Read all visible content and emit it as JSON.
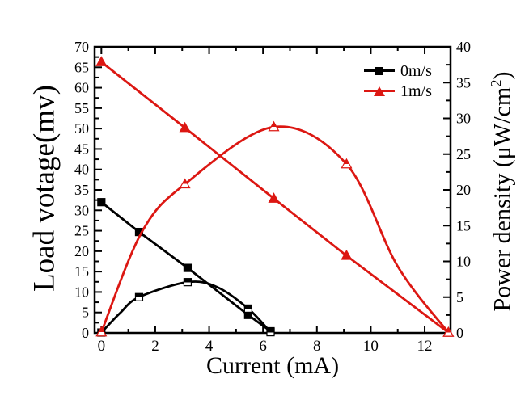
{
  "figure": {
    "background": "#ffffff",
    "text_color": "#000000"
  },
  "chart_data": {
    "type": "line",
    "title": "",
    "xlabel": "Current (mA)",
    "ylabel_left": "Load votage(mv)",
    "ylabel_right": "Power density (μW/cm²)",
    "ylabel_right_parts": {
      "pre": "Power density (μW/cm",
      "sup": "2",
      "post": ")"
    },
    "grid": false,
    "legend_position": "top-right-inside",
    "axes": {
      "x": {
        "min": -0.25,
        "max": 12.96,
        "major_ticks": [
          0,
          2,
          4,
          6,
          8,
          10,
          12
        ],
        "minor_ticks": [
          1,
          3,
          5,
          7,
          9,
          11
        ]
      },
      "y_left": {
        "min": 0,
        "max": 70,
        "major_ticks": [
          0,
          5,
          10,
          15,
          20,
          25,
          30,
          35,
          40,
          45,
          50,
          55,
          60,
          65,
          70
        ],
        "minor_ticks": [
          2.5,
          7.5,
          12.5,
          17.5,
          22.5,
          27.5,
          32.5,
          37.5,
          42.5,
          47.5,
          52.5,
          57.5,
          62.5,
          67.5
        ]
      },
      "y_right": {
        "min": 0,
        "max": 40,
        "major_ticks": [
          0,
          5,
          10,
          15,
          20,
          25,
          30,
          35,
          40
        ],
        "minor_ticks": [
          2.5,
          7.5,
          12.5,
          17.5,
          22.5,
          27.5,
          32.5,
          37.5
        ]
      }
    },
    "series": [
      {
        "id": "0ms-voltage",
        "name": "0m/s load voltage",
        "axis": "left",
        "color": "#000000",
        "marker": "square",
        "marker_fill": "solid",
        "smooth": false,
        "points": [
          [
            0,
            32
          ],
          [
            1.4,
            24.7
          ],
          [
            3.2,
            15.9
          ],
          [
            5.45,
            4.4
          ],
          [
            6.28,
            0.4
          ]
        ]
      },
      {
        "id": "0ms-power",
        "name": "0m/s power density",
        "axis": "right",
        "color": "#000000",
        "marker": "square",
        "marker_fill": "half",
        "smooth": true,
        "points": [
          [
            0,
            0.05
          ],
          [
            1.4,
            5.0
          ],
          [
            3.2,
            7.1
          ],
          [
            5.45,
            3.4
          ],
          [
            6.28,
            0.1
          ]
        ],
        "shape_points": [
          [
            0,
            0.05
          ],
          [
            0.7,
            2.8
          ],
          [
            1.4,
            5.0
          ],
          [
            3.2,
            7.1
          ],
          [
            4.3,
            6.4
          ],
          [
            5.45,
            3.4
          ],
          [
            6.28,
            0.1
          ]
        ]
      },
      {
        "id": "1ms-voltage",
        "name": "1m/s load voltage",
        "axis": "left",
        "color": "#dc1712",
        "marker": "triangle",
        "marker_fill": "solid",
        "smooth": false,
        "points": [
          [
            0,
            66.3
          ],
          [
            3.1,
            50.2
          ],
          [
            6.4,
            32.9
          ],
          [
            9.1,
            18.9
          ],
          [
            12.88,
            0.1
          ]
        ]
      },
      {
        "id": "1ms-power",
        "name": "1m/s power density",
        "axis": "right",
        "color": "#dc1712",
        "marker": "triangle",
        "marker_fill": "half",
        "smooth": true,
        "points": [
          [
            0,
            0.1
          ],
          [
            3.1,
            20.8
          ],
          [
            6.4,
            28.8
          ],
          [
            9.1,
            23.6
          ],
          [
            12.88,
            0.05
          ]
        ],
        "shape_points": [
          [
            0,
            0.1
          ],
          [
            1.5,
            14.1
          ],
          [
            3.1,
            20.8
          ],
          [
            6.4,
            28.8
          ],
          [
            9.1,
            23.6
          ],
          [
            11.0,
            9.3
          ],
          [
            12.88,
            0.05
          ]
        ]
      }
    ]
  },
  "legend": {
    "entries": [
      {
        "label": "0m/s",
        "color": "#000000",
        "marker": "square"
      },
      {
        "label": "1m/s",
        "color": "#dc1712",
        "marker": "triangle"
      }
    ]
  }
}
